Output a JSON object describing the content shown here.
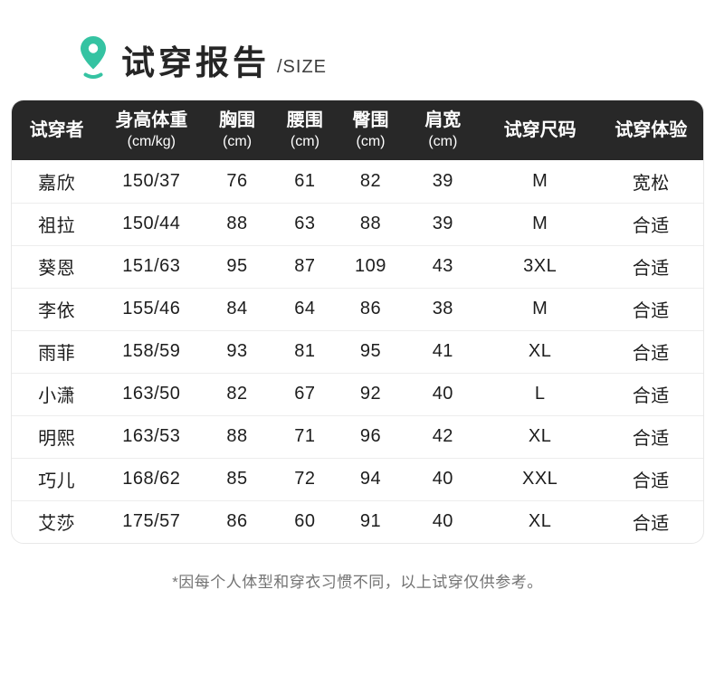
{
  "header": {
    "title": "试穿报告",
    "subtitle": "/SIZE"
  },
  "colors": {
    "accent": "#35c3a2",
    "header_bg": "#282828",
    "header_text": "#ffffff",
    "body_text": "#1d1d1d",
    "row_divider": "#ededed",
    "card_border": "#e8e8e8",
    "footnote_text": "#737373"
  },
  "icons": {
    "location_pin": "location-pin-icon"
  },
  "table": {
    "columns": [
      {
        "label": "试穿者",
        "unit": ""
      },
      {
        "label": "身高体重",
        "unit": "(cm/kg)"
      },
      {
        "label": "胸围",
        "unit": "(cm)"
      },
      {
        "label": "腰围",
        "unit": "(cm)"
      },
      {
        "label": "臀围",
        "unit": "(cm)"
      },
      {
        "label": "肩宽",
        "unit": "(cm)"
      },
      {
        "label": "试穿尺码",
        "unit": ""
      },
      {
        "label": "试穿体验",
        "unit": ""
      }
    ],
    "rows": [
      [
        "嘉欣",
        "150/37",
        "76",
        "61",
        "82",
        "39",
        "M",
        "宽松"
      ],
      [
        "祖拉",
        "150/44",
        "88",
        "63",
        "88",
        "39",
        "M",
        "合适"
      ],
      [
        "葵恩",
        "151/63",
        "95",
        "87",
        "109",
        "43",
        "3XL",
        "合适"
      ],
      [
        "李依",
        "155/46",
        "84",
        "64",
        "86",
        "38",
        "M",
        "合适"
      ],
      [
        "雨菲",
        "158/59",
        "93",
        "81",
        "95",
        "41",
        "XL",
        "合适"
      ],
      [
        "小潇",
        "163/50",
        "82",
        "67",
        "92",
        "40",
        "L",
        "合适"
      ],
      [
        "明熙",
        "163/53",
        "88",
        "71",
        "96",
        "42",
        "XL",
        "合适"
      ],
      [
        "巧儿",
        "168/62",
        "85",
        "72",
        "94",
        "40",
        "XXL",
        "合适"
      ],
      [
        "艾莎",
        "175/57",
        "86",
        "60",
        "91",
        "40",
        "XL",
        "合适"
      ]
    ]
  },
  "footnote": "*因每个人体型和穿衣习惯不同，以上试穿仅供参考。",
  "chart_data": {
    "type": "table",
    "title": "试穿报告 /SIZE",
    "columns": [
      "试穿者",
      "身高体重(cm/kg)",
      "胸围(cm)",
      "腰围(cm)",
      "臀围(cm)",
      "肩宽(cm)",
      "试穿尺码",
      "试穿体验"
    ],
    "rows": [
      [
        "嘉欣",
        "150/37",
        76,
        61,
        82,
        39,
        "M",
        "宽松"
      ],
      [
        "祖拉",
        "150/44",
        88,
        63,
        88,
        39,
        "M",
        "合适"
      ],
      [
        "葵恩",
        "151/63",
        95,
        87,
        109,
        43,
        "3XL",
        "合适"
      ],
      [
        "李依",
        "155/46",
        84,
        64,
        86,
        38,
        "M",
        "合适"
      ],
      [
        "雨菲",
        "158/59",
        93,
        81,
        95,
        41,
        "XL",
        "合适"
      ],
      [
        "小潇",
        "163/50",
        82,
        67,
        92,
        40,
        "L",
        "合适"
      ],
      [
        "明熙",
        "163/53",
        88,
        71,
        96,
        42,
        "XL",
        "合适"
      ],
      [
        "巧儿",
        "168/62",
        85,
        72,
        94,
        40,
        "XXL",
        "合适"
      ],
      [
        "艾莎",
        "175/57",
        86,
        60,
        91,
        40,
        "XL",
        "合适"
      ]
    ],
    "footnote": "*因每个人体型和穿衣习惯不同，以上试穿仅供参考。"
  }
}
